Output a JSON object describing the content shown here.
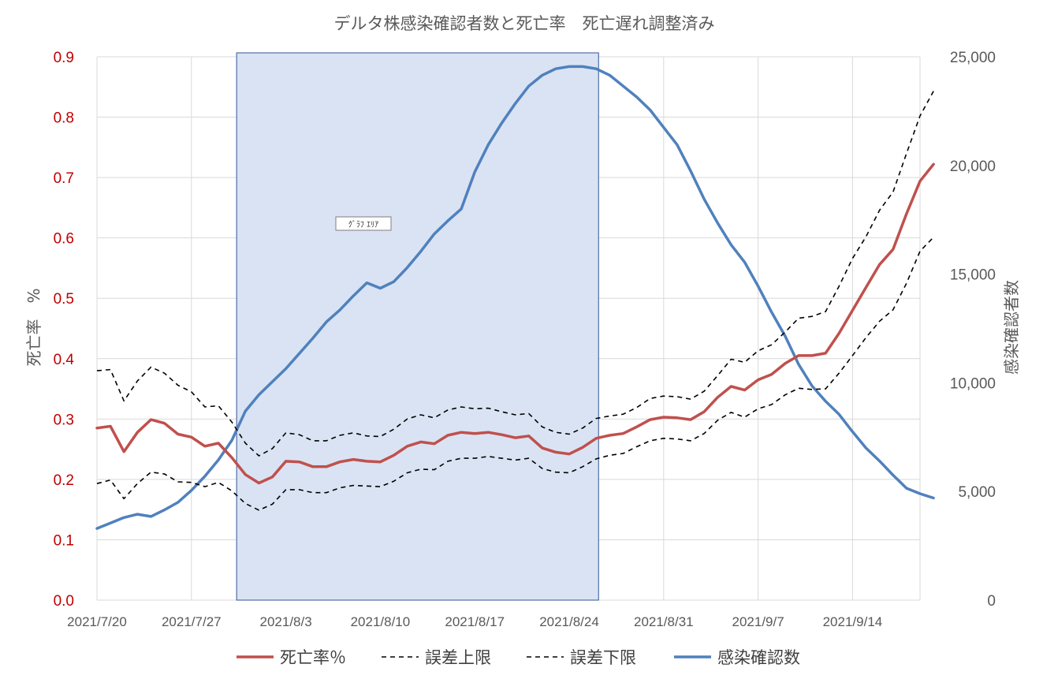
{
  "chart_data": {
    "type": "line",
    "title": "デルタ株感染確認者数と死亡率　死亡遅れ調整済み",
    "ylabel_left": "死亡率　%",
    "ylabel_right": "感染確認者数",
    "ylim_left": [
      0,
      0.9
    ],
    "ylim_right": [
      0,
      25000
    ],
    "yticks_left": [
      "0.0",
      "0.1",
      "0.2",
      "0.3",
      "0.4",
      "0.5",
      "0.6",
      "0.7",
      "0.8",
      "0.9"
    ],
    "yticks_right": [
      "0",
      "5,000",
      "10,000",
      "15,000",
      "20,000",
      "25,000"
    ],
    "x_start": "2021/7/20",
    "x_end": "2021/9/19",
    "xticks": [
      "2021/7/20",
      "2021/7/27",
      "2021/8/3",
      "2021/8/10",
      "2021/8/17",
      "2021/8/24",
      "2021/8/31",
      "2021/9/7",
      "2021/9/14"
    ],
    "grid": true,
    "legend_position": "bottom",
    "highlight_region": {
      "x_start": "2021/7/30",
      "x_end": "2021/8/26",
      "color": "#dae3f3",
      "label": "ｸﾞﾗﾌ ｴﾘｱ"
    },
    "series": [
      {
        "name": "死亡率％",
        "axis": "left",
        "color": "#c0504d",
        "dash": "solid",
        "values": [
          0.285,
          0.288,
          0.246,
          0.278,
          0.299,
          0.293,
          0.275,
          0.27,
          0.255,
          0.26,
          0.236,
          0.208,
          0.194,
          0.204,
          0.23,
          0.229,
          0.221,
          0.221,
          0.229,
          0.233,
          0.23,
          0.229,
          0.24,
          0.255,
          0.262,
          0.259,
          0.273,
          0.278,
          0.276,
          0.278,
          0.274,
          0.269,
          0.272,
          0.252,
          0.245,
          0.242,
          0.253,
          0.268,
          0.273,
          0.276,
          0.287,
          0.299,
          0.303,
          0.302,
          0.299,
          0.312,
          0.336,
          0.354,
          0.348,
          0.365,
          0.374,
          0.392,
          0.405,
          0.405,
          0.409,
          0.442,
          0.48,
          0.518,
          0.556,
          0.581,
          0.64,
          0.694,
          0.722
        ]
      },
      {
        "name": "誤差上限",
        "axis": "left",
        "color": "#000000",
        "dash": "dashed",
        "values": [
          0.38,
          0.382,
          0.33,
          0.363,
          0.386,
          0.376,
          0.356,
          0.345,
          0.32,
          0.322,
          0.295,
          0.26,
          0.239,
          0.251,
          0.277,
          0.274,
          0.264,
          0.264,
          0.273,
          0.277,
          0.272,
          0.271,
          0.283,
          0.3,
          0.307,
          0.302,
          0.315,
          0.32,
          0.317,
          0.318,
          0.312,
          0.307,
          0.309,
          0.287,
          0.278,
          0.275,
          0.285,
          0.301,
          0.305,
          0.308,
          0.319,
          0.334,
          0.338,
          0.337,
          0.333,
          0.346,
          0.372,
          0.399,
          0.394,
          0.413,
          0.423,
          0.444,
          0.467,
          0.47,
          0.478,
          0.52,
          0.566,
          0.602,
          0.646,
          0.676,
          0.74,
          0.802,
          0.843
        ]
      },
      {
        "name": "誤差下限",
        "axis": "left",
        "color": "#000000",
        "dash": "dashed",
        "values": [
          0.193,
          0.199,
          0.168,
          0.193,
          0.212,
          0.209,
          0.196,
          0.195,
          0.188,
          0.195,
          0.181,
          0.16,
          0.149,
          0.159,
          0.183,
          0.183,
          0.178,
          0.178,
          0.186,
          0.19,
          0.189,
          0.188,
          0.197,
          0.211,
          0.217,
          0.216,
          0.23,
          0.235,
          0.235,
          0.238,
          0.235,
          0.232,
          0.235,
          0.218,
          0.212,
          0.211,
          0.221,
          0.234,
          0.24,
          0.243,
          0.254,
          0.264,
          0.268,
          0.267,
          0.264,
          0.276,
          0.298,
          0.311,
          0.303,
          0.317,
          0.324,
          0.34,
          0.351,
          0.349,
          0.35,
          0.376,
          0.405,
          0.435,
          0.462,
          0.481,
          0.525,
          0.578,
          0.601
        ]
      },
      {
        "name": "感染確認数",
        "axis": "right",
        "color": "#4f81bd",
        "dash": "solid",
        "values": [
          3300,
          3550,
          3800,
          3950,
          3850,
          4150,
          4500,
          5050,
          5700,
          6450,
          7350,
          8700,
          9450,
          10050,
          10650,
          11350,
          12050,
          12800,
          13350,
          14000,
          14600,
          14350,
          14650,
          15300,
          16050,
          16850,
          17450,
          18000,
          19700,
          20950,
          21950,
          22850,
          23650,
          24150,
          24450,
          24550,
          24550,
          24450,
          24150,
          23650,
          23150,
          22550,
          21750,
          20950,
          19750,
          18450,
          17350,
          16350,
          15550,
          14450,
          13250,
          12150,
          10850,
          9850,
          9150,
          8550,
          7750,
          7000,
          6400,
          5750,
          5150,
          4900,
          4700
        ]
      }
    ]
  }
}
